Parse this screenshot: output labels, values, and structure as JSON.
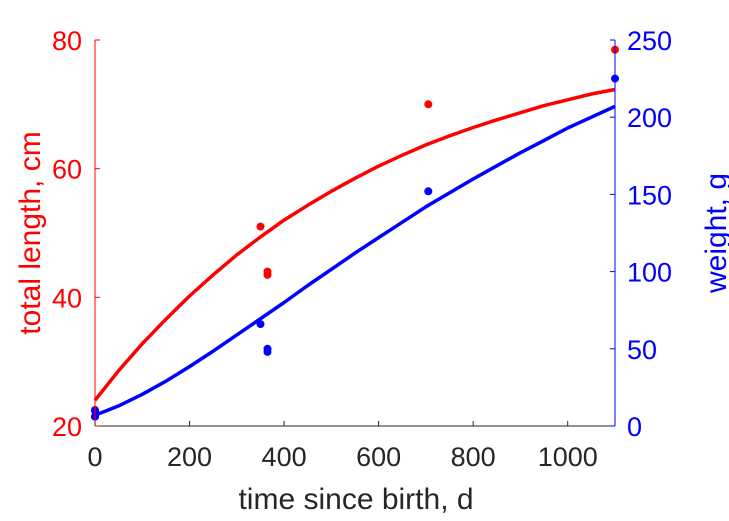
{
  "chart_data": {
    "type": "scatter",
    "xlabel": "time since birth, d",
    "xlim": [
      0,
      1100
    ],
    "xticks": [
      "0",
      "200",
      "400",
      "600",
      "800",
      "1000"
    ],
    "xtick_values": [
      0,
      200,
      400,
      600,
      800,
      1000
    ],
    "left_axis": {
      "label": "total length, cm",
      "ylim": [
        20,
        80
      ],
      "ticks": [
        "20",
        "40",
        "60",
        "80"
      ],
      "tick_values": [
        20,
        40,
        60,
        80
      ],
      "color": "#ff0000"
    },
    "right_axis": {
      "label": "weight, g",
      "ylim": [
        0,
        250
      ],
      "ticks": [
        "0",
        "50",
        "100",
        "150",
        "200",
        "250"
      ],
      "tick_values": [
        0,
        50,
        100,
        150,
        200,
        250
      ],
      "color": "#0000ff"
    },
    "series": [
      {
        "axis": "left",
        "color": "#ff0000",
        "points": [
          [
            0,
            21.5
          ],
          [
            0,
            22.5
          ],
          [
            350,
            51
          ],
          [
            365,
            44
          ],
          [
            365,
            43.5
          ],
          [
            705,
            70
          ],
          [
            1100,
            78.5
          ]
        ],
        "curve": [
          [
            0,
            24
          ],
          [
            50,
            28.6
          ],
          [
            100,
            32.8
          ],
          [
            150,
            36.6
          ],
          [
            200,
            40.2
          ],
          [
            250,
            43.5
          ],
          [
            300,
            46.6
          ],
          [
            350,
            49.4
          ],
          [
            400,
            52
          ],
          [
            450,
            54.3
          ],
          [
            500,
            56.5
          ],
          [
            550,
            58.5
          ],
          [
            600,
            60.4
          ],
          [
            650,
            62.1
          ],
          [
            700,
            63.7
          ],
          [
            750,
            65.1
          ],
          [
            800,
            66.4
          ],
          [
            850,
            67.6
          ],
          [
            900,
            68.7
          ],
          [
            950,
            69.8
          ],
          [
            1000,
            70.7
          ],
          [
            1050,
            71.6
          ],
          [
            1100,
            72.3
          ]
        ]
      },
      {
        "axis": "right",
        "color": "#0000ff",
        "points": [
          [
            0,
            10
          ],
          [
            0,
            6
          ],
          [
            350,
            66
          ],
          [
            365,
            50
          ],
          [
            365,
            48
          ],
          [
            705,
            152
          ],
          [
            1100,
            225
          ]
        ],
        "curve": [
          [
            0,
            7
          ],
          [
            50,
            13
          ],
          [
            100,
            20.5
          ],
          [
            150,
            29
          ],
          [
            200,
            38.5
          ],
          [
            250,
            48.5
          ],
          [
            300,
            59
          ],
          [
            350,
            69.5
          ],
          [
            400,
            80
          ],
          [
            450,
            91
          ],
          [
            500,
            101.5
          ],
          [
            550,
            112
          ],
          [
            600,
            122
          ],
          [
            650,
            132
          ],
          [
            700,
            142
          ],
          [
            750,
            151
          ],
          [
            800,
            160
          ],
          [
            850,
            168.5
          ],
          [
            900,
            177
          ],
          [
            950,
            185
          ],
          [
            1000,
            193
          ],
          [
            1050,
            200
          ],
          [
            1100,
            207
          ]
        ]
      }
    ]
  }
}
